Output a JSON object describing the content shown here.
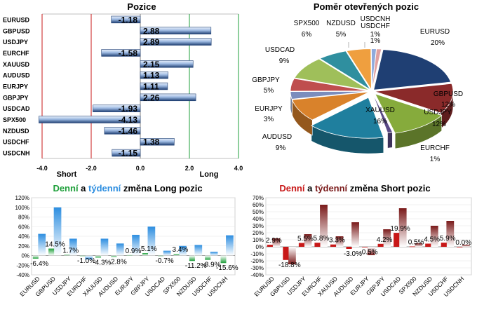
{
  "colors": {
    "bar_fill": "#1f3f73",
    "bar_light": "#c9dbf3",
    "green": "#1e9f3a",
    "blue": "#2d8ee0",
    "red": "#c81818",
    "dark_red": "#7a1a1a"
  },
  "chart_data": [
    {
      "type": "bar",
      "orientation": "horizontal",
      "title": "Pozice",
      "categories": [
        "EURUSD",
        "GBPUSD",
        "USDJPY",
        "EURCHF",
        "XAUUSD",
        "AUDUSD",
        "EURJPY",
        "GBPJPY",
        "USDCAD",
        "SPX500",
        "NZDUSD",
        "USDCHF",
        "USDCNH"
      ],
      "values": [
        -1.18,
        2.88,
        2.89,
        -1.58,
        2.15,
        1.13,
        1.11,
        2.26,
        -1.93,
        -4.13,
        -1.46,
        1.38,
        -1.15
      ],
      "data_labels": [
        "-1.18",
        "2.88",
        "2.89",
        "-1.58",
        "2.15",
        "1.13",
        "1.11",
        "2.26",
        "-1.93",
        "-4.13",
        "-1.46",
        "1.38",
        "-1.15"
      ],
      "xlim": [
        -4.0,
        4.0
      ],
      "xticks": [
        "-4.0",
        "-2.0",
        "0.0",
        "2.0",
        "4.0"
      ],
      "short_label": "Short",
      "long_label": "Long",
      "reference_lines": [
        -2.0,
        2.0
      ]
    },
    {
      "type": "pie",
      "title": "Poměr  otevřených pozic",
      "three_d": true,
      "slices": [
        {
          "name": "EURUSD",
          "value": 20,
          "label": "20%",
          "color": "#1f3f73"
        },
        {
          "name": "GBPUSD",
          "value": 12,
          "label": "12%",
          "color": "#8a2a2a"
        },
        {
          "name": "USDJPY",
          "value": 12,
          "label": "12%",
          "color": "#86ab3c"
        },
        {
          "name": "EURCHF",
          "value": 1,
          "label": "1%",
          "color": "#5a4a86"
        },
        {
          "name": "XAUUSD",
          "value": 16,
          "label": "16%",
          "color": "#1f7f9e"
        },
        {
          "name": "AUDUSD",
          "value": 9,
          "label": "9%",
          "color": "#d9822b"
        },
        {
          "name": "EURJPY",
          "value": 3,
          "label": "3%",
          "color": "#7b8dbd"
        },
        {
          "name": "GBPJPY",
          "value": 5,
          "label": "5%",
          "color": "#bf4e4e"
        },
        {
          "name": "USDCAD",
          "value": 9,
          "label": "9%",
          "color": "#9fbf5a"
        },
        {
          "name": "SPX500",
          "value": 6,
          "label": "6%",
          "color": "#2f8f9f"
        },
        {
          "name": "NZDUSD",
          "value": 5,
          "label": "5%",
          "color": "#ef9f3f"
        },
        {
          "name": "USDCHF",
          "value": 1,
          "label": "1%",
          "color": "#8faadc"
        },
        {
          "name": "USDCNH",
          "value": 1,
          "label": "1%",
          "color": "#e0a0a0"
        }
      ]
    },
    {
      "type": "bar",
      "title_parts": [
        "Denní",
        " a ",
        "týdenní",
        " změna Long pozic"
      ],
      "categories": [
        "EURUSD",
        "GBPUSD",
        "USDJPY",
        "EURCHF",
        "XAUUSD",
        "AUDUSD",
        "EURJPY",
        "GBPJPY",
        "USDCAD",
        "SPX500",
        "NZDUSD",
        "USDCHF",
        "USDCNH"
      ],
      "series": [
        {
          "kind": "daily",
          "values": [
            -6.4,
            14.5,
            1.7,
            -1.0,
            -4.3,
            -2.8,
            0.9,
            5.1,
            -0.7,
            3.4,
            -11.2,
            -8.9,
            -15.6
          ]
        },
        {
          "kind": "weekly",
          "values": [
            45,
            100,
            35,
            -8,
            35,
            25,
            43,
            60,
            10,
            20,
            22,
            8,
            42
          ]
        }
      ],
      "data_labels": [
        "-6.4%",
        "14.5%",
        "1.7%",
        "-1.0%",
        "-4.3%",
        "-2.8%",
        "0.9%",
        "5.1%",
        "-0.7%",
        "3.4%",
        "-11.2%",
        "-8.9%",
        "-15.6%"
      ],
      "ylim": [
        -40,
        120
      ],
      "yticks": [
        "-40%",
        "-20%",
        "0%",
        "20%",
        "40%",
        "60%",
        "80%",
        "100%",
        "120%"
      ]
    },
    {
      "type": "bar",
      "title_parts": [
        "Denní",
        " a ",
        "týdenní",
        " změna Short pozic"
      ],
      "categories": [
        "EURUSD",
        "GBPUSD",
        "USDJPY",
        "EURCHF",
        "XAUUSD",
        "AUDUSD",
        "EURJPY",
        "GBPJPY",
        "USDCAD",
        "SPX500",
        "NZDUSD",
        "USDCHF",
        "USDCNH"
      ],
      "series": [
        {
          "kind": "daily",
          "values": [
            2.9,
            -18.8,
            5.5,
            5.8,
            3.3,
            -3.0,
            -0.5,
            4.2,
            19.9,
            0.5,
            4.5,
            5.9,
            0.0
          ]
        },
        {
          "kind": "weekly",
          "values": [
            12,
            -25,
            18,
            60,
            15,
            35,
            -12,
            25,
            55,
            5,
            30,
            37,
            3
          ]
        }
      ],
      "data_labels": [
        "2.9%",
        "-18.8%",
        "5.5%",
        "5.8%",
        "3.3%",
        "-3.0%",
        "-0.5%",
        "4.2%",
        "19.9%",
        "0.5%",
        "4.5%",
        "5.9%",
        "0.0%"
      ],
      "ylim": [
        -40,
        70
      ],
      "yticks": [
        "-40%",
        "-30%",
        "-20%",
        "-10%",
        "0%",
        "10%",
        "20%",
        "30%",
        "40%",
        "50%",
        "60%",
        "70%"
      ]
    }
  ]
}
